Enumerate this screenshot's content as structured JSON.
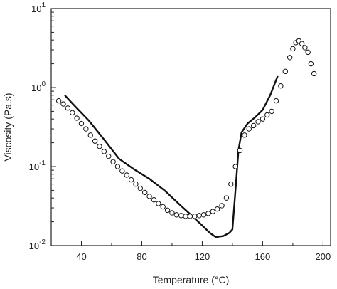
{
  "chart_data": {
    "type": "line",
    "title": "",
    "xlabel": "Temperature (°C)",
    "ylabel": "Viscosity (Pa.s)",
    "xlim": [
      20,
      205
    ],
    "ylim": [
      0.01,
      10
    ],
    "y_scale": "log",
    "grid": false,
    "legend": "none",
    "x_ticks": [
      40,
      80,
      120,
      160,
      200
    ],
    "x_tick_labels": [
      "40",
      "80",
      "120",
      "160",
      "200"
    ],
    "y_ticks": [
      0.01,
      0.1,
      1,
      10
    ],
    "y_tick_labels": [
      {
        "base": "10",
        "exp": "-2"
      },
      {
        "base": "10",
        "exp": "-1"
      },
      {
        "base": "10",
        "exp": "0"
      },
      {
        "base": "10",
        "exp": "1"
      }
    ],
    "series": [
      {
        "style": "line",
        "color": "#111111",
        "x": [
          29,
          35,
          45,
          55,
          65,
          75,
          85,
          95,
          105,
          112,
          120,
          125,
          129,
          134,
          138,
          140,
          142,
          144,
          146,
          150,
          155,
          160,
          165,
          170
        ],
        "y": [
          0.8,
          0.6,
          0.38,
          0.22,
          0.125,
          0.092,
          0.07,
          0.05,
          0.033,
          0.025,
          0.018,
          0.0145,
          0.0128,
          0.0132,
          0.0145,
          0.016,
          0.05,
          0.16,
          0.27,
          0.35,
          0.42,
          0.52,
          0.8,
          1.4
        ]
      },
      {
        "style": "markers",
        "color": "#111111",
        "x": [
          25,
          28,
          31,
          34,
          37,
          40,
          43,
          46,
          49,
          52,
          55,
          58,
          61,
          64,
          67,
          70,
          73,
          76,
          79,
          82,
          85,
          88,
          91,
          94,
          97,
          100,
          103,
          106,
          109,
          112,
          115,
          118,
          121,
          124,
          127,
          130,
          133,
          136,
          139,
          142,
          145,
          148,
          151,
          154,
          157,
          160,
          163,
          166,
          169,
          172,
          175,
          178,
          180,
          182,
          184,
          186,
          188,
          190,
          192,
          194
        ],
        "y": [
          0.68,
          0.62,
          0.55,
          0.48,
          0.41,
          0.35,
          0.3,
          0.25,
          0.21,
          0.18,
          0.155,
          0.135,
          0.115,
          0.1,
          0.088,
          0.078,
          0.068,
          0.06,
          0.053,
          0.047,
          0.042,
          0.038,
          0.034,
          0.031,
          0.028,
          0.026,
          0.0245,
          0.024,
          0.0235,
          0.0235,
          0.0235,
          0.024,
          0.0245,
          0.0255,
          0.027,
          0.029,
          0.032,
          0.04,
          0.06,
          0.1,
          0.16,
          0.25,
          0.3,
          0.33,
          0.37,
          0.4,
          0.45,
          0.5,
          0.68,
          1.05,
          1.6,
          2.4,
          3.1,
          3.7,
          3.9,
          3.6,
          3.2,
          2.8,
          2.0,
          1.5
        ]
      }
    ]
  }
}
